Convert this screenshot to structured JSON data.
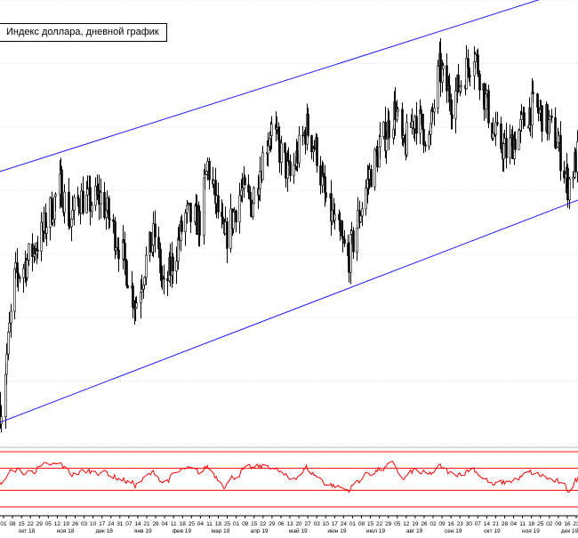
{
  "title": "Индекс доллара, дневной график",
  "chart_data": {
    "type": "candlestick",
    "title": "Индекс доллара, дневной график",
    "description_of_series": "daily candles, values in price-index units (approximate)",
    "ylim": [
      93.0,
      100.0
    ],
    "colors": {
      "candles": "#000000",
      "channel": "#1a1aff",
      "oscillator": "#ff0000",
      "grid": "#d8d8d8"
    },
    "channel_lines": [
      {
        "name": "upper",
        "points": [
          [
            "2018-09-27",
            97.3
          ],
          [
            "2019-12-20",
            100.2
          ]
        ]
      },
      {
        "name": "lower",
        "points": [
          [
            "2018-09-27",
            93.35
          ],
          [
            "2019-12-20",
            96.85
          ]
        ]
      }
    ],
    "keypoints": [
      [
        "2018-09-28",
        93.6
      ],
      [
        "2018-10-08",
        95.6
      ],
      [
        "2018-10-18",
        95.9
      ],
      [
        "2018-10-29",
        96.3
      ],
      [
        "2018-11-13",
        97.1
      ],
      [
        "2018-11-20",
        96.5
      ],
      [
        "2018-11-27",
        96.9
      ],
      [
        "2018-12-05",
        96.8
      ],
      [
        "2018-12-14",
        96.9
      ],
      [
        "2018-12-31",
        96.0
      ],
      [
        "2019-01-10",
        95.2
      ],
      [
        "2019-01-18",
        95.9
      ],
      [
        "2019-01-25",
        96.3
      ],
      [
        "2019-02-01",
        95.4
      ],
      [
        "2019-02-18",
        96.6
      ],
      [
        "2019-03-01",
        96.5
      ],
      [
        "2019-03-07",
        97.4
      ],
      [
        "2019-03-20",
        96.2
      ],
      [
        "2019-04-02",
        97.0
      ],
      [
        "2019-04-10",
        96.8
      ],
      [
        "2019-04-25",
        98.0
      ],
      [
        "2019-05-10",
        97.2
      ],
      [
        "2019-05-23",
        98.0
      ],
      [
        "2019-05-31",
        97.6
      ],
      [
        "2019-06-06",
        96.9
      ],
      [
        "2019-06-24",
        95.9
      ],
      [
        "2019-06-28",
        96.2
      ],
      [
        "2019-07-10",
        97.2
      ],
      [
        "2019-07-31",
        98.3
      ],
      [
        "2019-08-06",
        97.6
      ],
      [
        "2019-08-15",
        98.2
      ],
      [
        "2019-08-26",
        97.8
      ],
      [
        "2019-09-03",
        98.9
      ],
      [
        "2019-09-13",
        98.4
      ],
      [
        "2019-09-30",
        99.2
      ],
      [
        "2019-10-15",
        97.9
      ],
      [
        "2019-10-25",
        97.6
      ],
      [
        "2019-11-06",
        98.0
      ],
      [
        "2019-11-13",
        98.3
      ],
      [
        "2019-11-22",
        98.2
      ],
      [
        "2019-12-03",
        97.8
      ],
      [
        "2019-12-12",
        97.1
      ],
      [
        "2019-12-20",
        97.6
      ]
    ],
    "oscillator": {
      "keypoints": [
        [
          "2018-09-27",
          40
        ],
        [
          "2018-10-02",
          55
        ],
        [
          "2018-10-09",
          68
        ],
        [
          "2018-10-16",
          60
        ],
        [
          "2018-10-26",
          70
        ],
        [
          "2018-11-13",
          76
        ],
        [
          "2018-11-21",
          60
        ],
        [
          "2018-12-05",
          64
        ],
        [
          "2018-12-14",
          66
        ],
        [
          "2018-12-31",
          50
        ],
        [
          "2019-01-10",
          40
        ],
        [
          "2019-01-25",
          62
        ],
        [
          "2019-02-01",
          45
        ],
        [
          "2019-02-18",
          68
        ],
        [
          "2019-03-01",
          60
        ],
        [
          "2019-03-07",
          73
        ],
        [
          "2019-03-20",
          42
        ],
        [
          "2019-04-02",
          64
        ],
        [
          "2019-04-25",
          75
        ],
        [
          "2019-05-10",
          48
        ],
        [
          "2019-05-23",
          70
        ],
        [
          "2019-06-06",
          45
        ],
        [
          "2019-06-24",
          30
        ],
        [
          "2019-07-10",
          62
        ],
        [
          "2019-07-31",
          75
        ],
        [
          "2019-08-06",
          48
        ],
        [
          "2019-08-15",
          66
        ],
        [
          "2019-08-26",
          55
        ],
        [
          "2019-09-03",
          72
        ],
        [
          "2019-09-13",
          58
        ],
        [
          "2019-09-30",
          70
        ],
        [
          "2019-10-15",
          38
        ],
        [
          "2019-10-25",
          44
        ],
        [
          "2019-11-13",
          60
        ],
        [
          "2019-11-22",
          56
        ],
        [
          "2019-12-03",
          45
        ],
        [
          "2019-12-12",
          30
        ],
        [
          "2019-12-20",
          52
        ]
      ],
      "levels": [
        0,
        30,
        70,
        100
      ],
      "ylim": [
        0,
        100
      ]
    },
    "x_tick_day_labels": [
      "01",
      "08",
      "15",
      "22",
      "29",
      "05",
      "12",
      "19",
      "26",
      "03",
      "10",
      "17",
      "24",
      "31",
      "07",
      "14",
      "21",
      "28",
      "04",
      "11",
      "18",
      "25",
      "04",
      "11",
      "18",
      "25",
      "01",
      "08",
      "15",
      "22",
      "29",
      "06",
      "13",
      "20",
      "27",
      "03",
      "10",
      "17",
      "24",
      "01",
      "08",
      "15",
      "22",
      "29",
      "05",
      "12",
      "19",
      "26",
      "02",
      "09",
      "16",
      "23",
      "30",
      "07",
      "14",
      "21",
      "28",
      "04",
      "11",
      "18",
      "25",
      "02",
      "09",
      "16",
      "23"
    ],
    "x_month_labels": [
      "окт 18",
      "ноя 18",
      "дек 18",
      "янв 19",
      "фев 19",
      "мар 19",
      "апр 19",
      "май 19",
      "июн 19",
      "июл 19",
      "авг 19",
      "сен 19",
      "окт 19",
      "ноя 19",
      "дек 19"
    ],
    "grid": true
  }
}
